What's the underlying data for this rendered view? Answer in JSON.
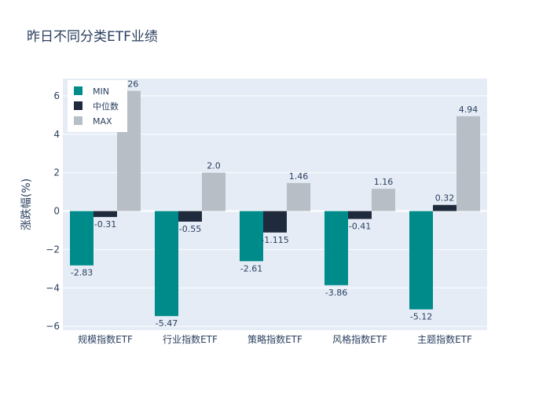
{
  "chart_data": {
    "type": "bar",
    "title": "昨日不同分类ETF业绩",
    "ylabel": "涨跌幅(%)",
    "xlabel": "",
    "categories": [
      "规模指数ETF",
      "行业指数ETF",
      "策略指数ETF",
      "风格指数ETF",
      "主题指数ETF"
    ],
    "series": [
      {
        "name": "MIN",
        "color": "#008b8b",
        "values": [
          -2.83,
          -5.47,
          -2.61,
          -3.86,
          -5.12
        ],
        "labels": [
          "-2.83",
          "-5.47",
          "-2.61",
          "-3.86",
          "-5.12"
        ]
      },
      {
        "name": "中位数",
        "color": "#1f2a3d",
        "values": [
          -0.31,
          -0.55,
          -1.115,
          -0.41,
          0.32
        ],
        "labels": [
          "-0.31",
          "-0.55",
          "-1.115",
          "-0.41",
          "0.32"
        ]
      },
      {
        "name": "MAX",
        "color": "#b8bec5",
        "values": [
          6.26,
          2.0,
          1.46,
          1.16,
          4.94
        ],
        "labels": [
          "6.26",
          "2.0",
          "1.46",
          "1.16",
          "4.94"
        ]
      }
    ],
    "ylim": [
      -6.2,
      6.9
    ],
    "yticks": [
      6,
      4,
      2,
      0,
      -2,
      -4,
      -6
    ],
    "ytick_labels": [
      "6",
      "4",
      "2",
      "0",
      "−2",
      "−4",
      "−6"
    ],
    "grid": true,
    "legend": "top-left",
    "plot_bg": "#e5ecf6"
  }
}
